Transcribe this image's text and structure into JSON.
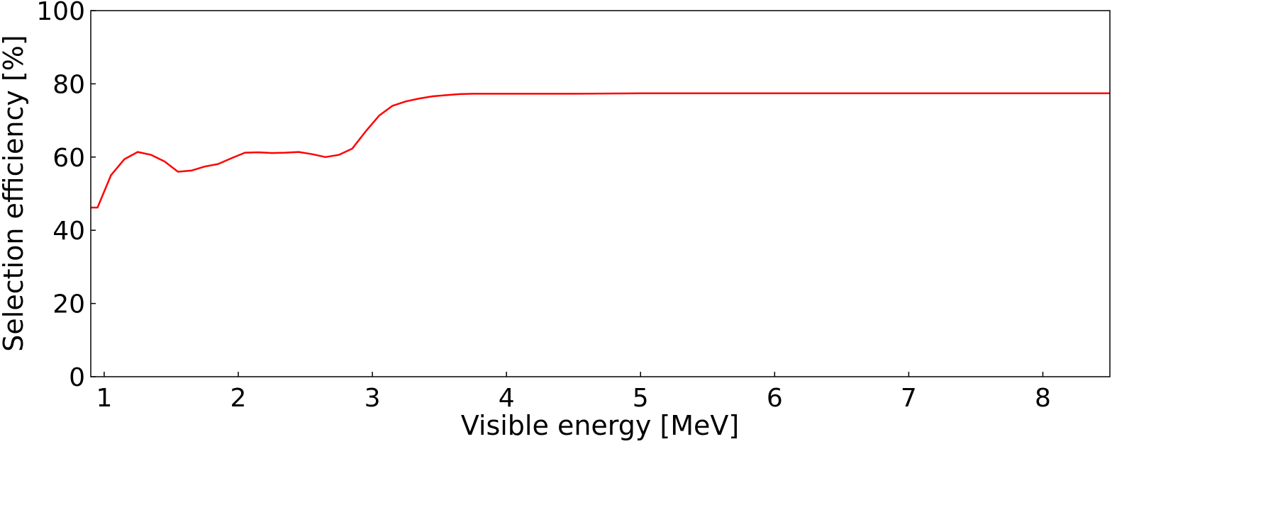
{
  "chart_data": {
    "type": "line",
    "title": "",
    "xlabel": "Visible energy [MeV]",
    "ylabel": "Selection efficiency [%]",
    "xlim": [
      0.9,
      8.5
    ],
    "ylim": [
      0,
      100
    ],
    "xticks": [
      1,
      2,
      3,
      4,
      5,
      6,
      7,
      8
    ],
    "yticks": [
      0,
      20,
      40,
      60,
      80,
      100
    ],
    "grid": false,
    "series": [
      {
        "name": "efficiency",
        "color": "#ff0000",
        "x": [
          0.9,
          0.95,
          1.05,
          1.15,
          1.25,
          1.35,
          1.45,
          1.55,
          1.65,
          1.75,
          1.85,
          1.95,
          2.05,
          2.15,
          2.25,
          2.35,
          2.45,
          2.55,
          2.65,
          2.75,
          2.85,
          2.95,
          3.05,
          3.15,
          3.25,
          3.35,
          3.45,
          3.55,
          3.65,
          3.75,
          4.0,
          4.5,
          5.0,
          5.5,
          6.0,
          6.5,
          7.0,
          7.5,
          8.0,
          8.5
        ],
        "y": [
          46.2,
          46.2,
          55.0,
          59.4,
          61.4,
          60.6,
          58.8,
          56.0,
          56.3,
          57.4,
          58.1,
          59.7,
          61.2,
          61.3,
          61.1,
          61.2,
          61.4,
          60.8,
          60.0,
          60.6,
          62.3,
          67.0,
          71.3,
          74.0,
          75.2,
          76.0,
          76.6,
          76.9,
          77.2,
          77.3,
          77.3,
          77.3,
          77.4,
          77.4,
          77.4,
          77.4,
          77.4,
          77.4,
          77.4,
          77.4
        ]
      }
    ]
  }
}
